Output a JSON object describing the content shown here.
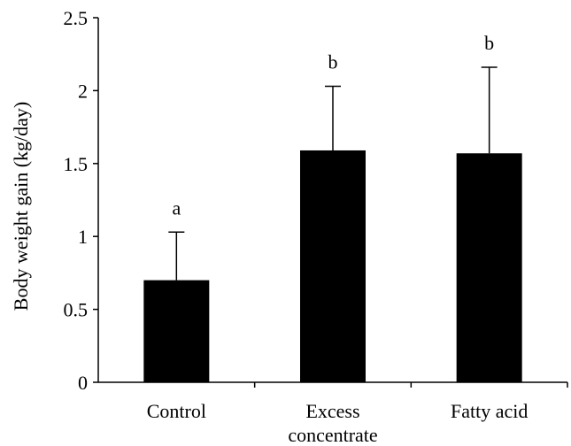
{
  "chart_data": {
    "type": "bar",
    "title": "",
    "xlabel": "",
    "ylabel": "Body weight gain (kg/day)",
    "ylim": [
      0,
      2.5
    ],
    "yticks": [
      0,
      0.5,
      1,
      1.5,
      2,
      2.5
    ],
    "ytick_labels": [
      "0",
      "0.5",
      "1",
      "1.5",
      "2",
      "2.5"
    ],
    "categories": [
      [
        "Control"
      ],
      [
        "Excess",
        "concentrate"
      ],
      [
        "Fatty acid"
      ]
    ],
    "values": [
      0.7,
      1.59,
      1.57
    ],
    "error_upper": [
      0.33,
      0.44,
      0.59
    ],
    "significance_letters": [
      "a",
      "b",
      "b"
    ],
    "bar_color": "#000000",
    "grid": false,
    "legend": "none"
  }
}
